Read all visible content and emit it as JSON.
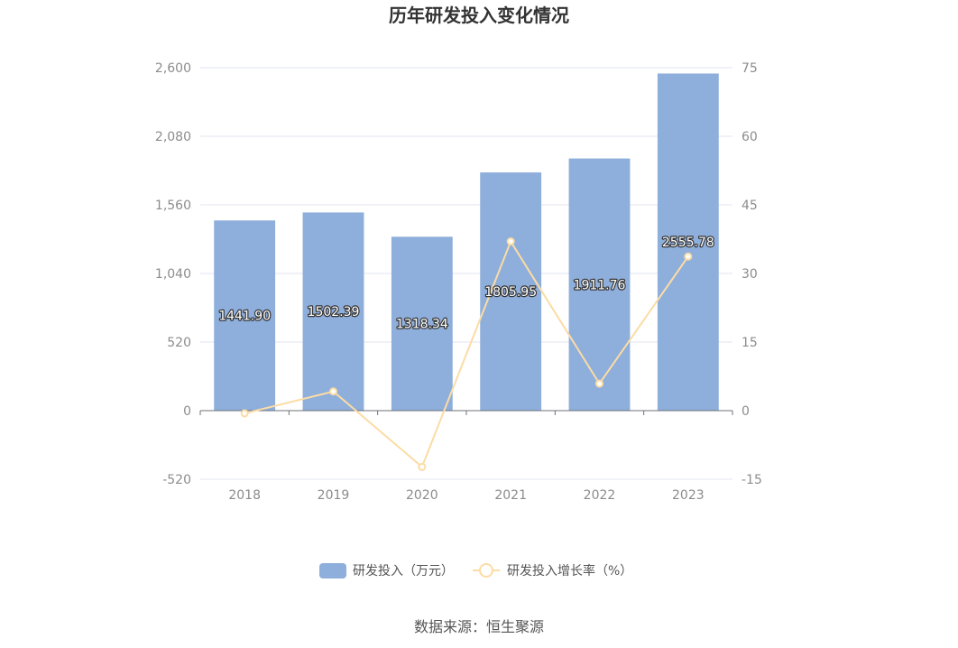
{
  "chart_data": {
    "type": "bar",
    "title": "历年研发投入变化情况",
    "categories": [
      "2018",
      "2019",
      "2020",
      "2021",
      "2022",
      "2023"
    ],
    "series": [
      {
        "name": "研发投入（万元）",
        "type": "bar",
        "axis": "left",
        "values": [
          1441.9,
          1502.39,
          1318.34,
          1805.95,
          1911.76,
          2555.78
        ],
        "labels": [
          "1441.90",
          "1502.39",
          "1318.34",
          "1805.95",
          "1911.76",
          "2555.78"
        ],
        "color": "#8eaedb"
      },
      {
        "name": "研发投入增长率（%）",
        "type": "line",
        "axis": "right",
        "values": [
          -0.6,
          4.2,
          -12.3,
          37.0,
          5.9,
          33.7
        ],
        "color": "#fbdca5"
      }
    ],
    "y_left": {
      "min": -520,
      "max": 2600,
      "ticks": [
        -520,
        0,
        520,
        1040,
        1560,
        2080,
        2600
      ],
      "tick_labels": [
        "-520",
        "0",
        "520",
        "1,040",
        "1,560",
        "2,080",
        "2,600"
      ]
    },
    "y_right": {
      "min": -15,
      "max": 75,
      "ticks": [
        -15,
        0,
        15,
        30,
        45,
        60,
        75
      ],
      "tick_labels": [
        "-15",
        "0",
        "15",
        "30",
        "45",
        "60",
        "75"
      ]
    },
    "grid": true,
    "legend_position": "bottom"
  },
  "source_text": "数据来源：恒生聚源"
}
